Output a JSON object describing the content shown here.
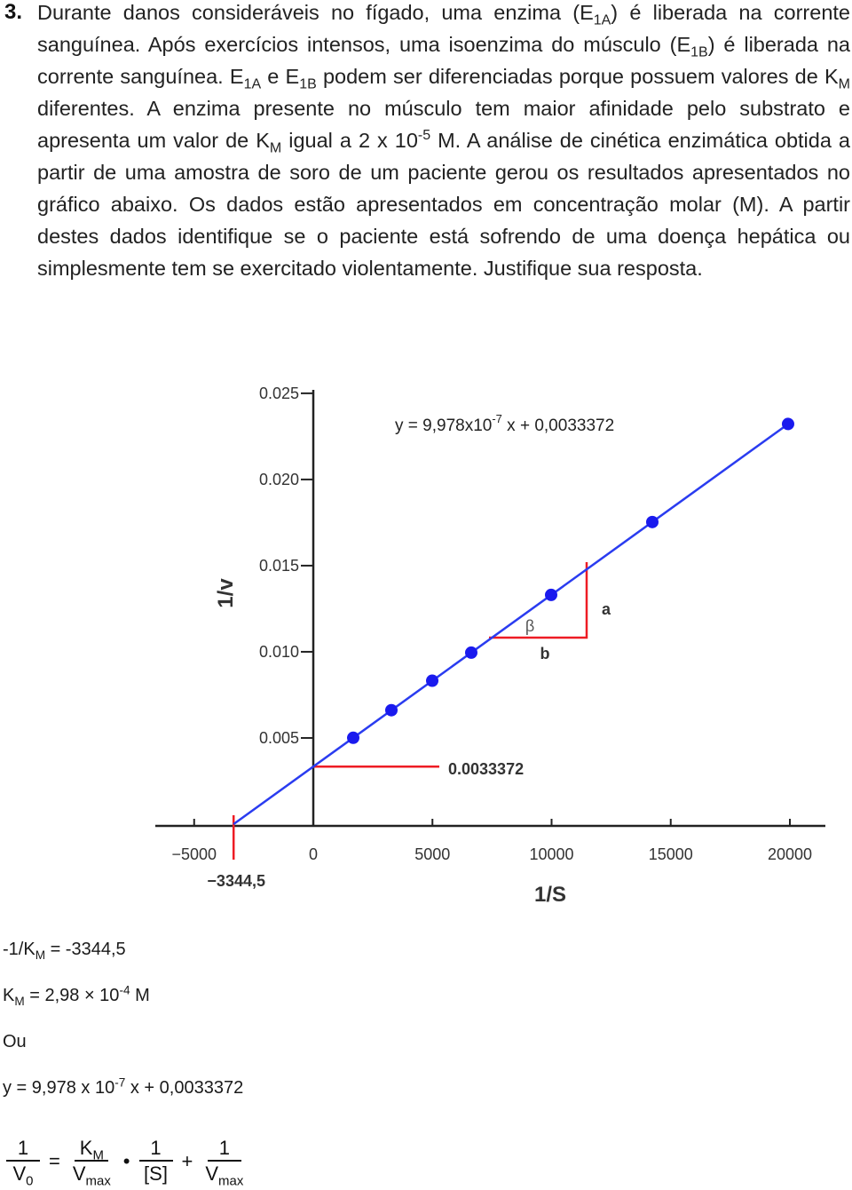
{
  "question": {
    "number": "3.",
    "runs": [
      {
        "text": "Durante danos consideráveis no fígado, uma enzima (E"
      },
      {
        "sub": "1A"
      },
      {
        "text": ") é liberada na corrente sanguínea. Após exercícios intensos, uma isoenzima do músculo (E"
      },
      {
        "sub": "1B"
      },
      {
        "text": ") é liberada na corrente sanguínea. E"
      },
      {
        "sub": "1A"
      },
      {
        "text": " e E"
      },
      {
        "sub": "1B"
      },
      {
        "text": " podem ser diferenciadas porque possuem valores de K"
      },
      {
        "sub": "M"
      },
      {
        "text": " diferentes. A enzima presente no músculo tem maior afinidade pelo substrato e apresenta um valor de K"
      },
      {
        "sub": "M"
      },
      {
        "text": " igual a 2 x 10"
      },
      {
        "sup": "-5"
      },
      {
        "text": " M. A análise de cinética enzimática obtida a partir de uma amostra de soro de um paciente gerou os resultados apresentados no gráfico abaixo. Os dados estão apresentados em concentração molar (M). A partir destes dados identifique se o paciente está sofrendo de uma doença hepática ou simplesmente tem se exercitado violentamente. Justifique sua resposta."
      }
    ]
  },
  "chart_data": {
    "type": "scatter",
    "x_label": "1/S",
    "y_label": "1/v",
    "x": [
      1676,
      3277,
      4991,
      6629,
      9981,
      14227,
      19925
    ],
    "series": [
      {
        "color": "#1a1aee",
        "values": [
          0.00501,
          0.00661,
          0.00832,
          0.00995,
          0.0133,
          0.01753,
          0.02322
        ]
      }
    ],
    "xlim": [
      -6630,
      21490
    ],
    "ylim": [
      0,
      0.0252
    ],
    "xticks": [
      {
        "value": -5000,
        "label": "−5000"
      },
      0,
      5000,
      10000,
      15000,
      20000
    ],
    "yticks": [
      0.005,
      {
        "value": 0.01,
        "label": "0.010"
      },
      0.015,
      {
        "value": 0.02,
        "label": "0.020"
      },
      0.025
    ],
    "fit": {
      "slope": 9.978e-07,
      "intercept": 0.0033372,
      "color": "#2a3cf0"
    },
    "equation": [
      {
        "text": "y = 9,978x10"
      },
      {
        "sup": "-7"
      },
      {
        "text": " x + 0,0033372"
      }
    ],
    "x_intercept": {
      "value": -3344.5,
      "label": "−3344,5"
    },
    "annotation_color": "#ee1c24",
    "triangle": {
      "angle": "β",
      "rise": "a",
      "run": "b"
    }
  },
  "solution": {
    "lines": [
      [
        {
          "text": "-1/K"
        },
        {
          "sub": "M"
        },
        {
          "text": " = -3344,5"
        }
      ],
      [
        {
          "text": "K"
        },
        {
          "sub": "M"
        },
        {
          "text": " = 2,98 × 10"
        },
        {
          "sup": "-4"
        },
        {
          "text": " M"
        }
      ],
      [
        {
          "text": "Ou"
        }
      ],
      [
        {
          "text": "y = 9,978 x 10"
        },
        {
          "sup": "-7"
        },
        {
          "text": " x + 0,0033372"
        }
      ]
    ],
    "formula": {
      "terms": [
        {
          "num": [
            {
              "text": "1"
            }
          ],
          "den": [
            {
              "text": "V"
            },
            {
              "sub": "0"
            }
          ]
        },
        {
          "num": [
            {
              "text": "K"
            },
            {
              "sub": "M"
            }
          ],
          "den": [
            {
              "text": "V"
            },
            {
              "sub": "max"
            }
          ]
        },
        {
          "num": [
            {
              "text": "1"
            }
          ],
          "den": [
            {
              "text": "[S]"
            }
          ]
        },
        {
          "num": [
            {
              "text": "1"
            }
          ],
          "den": [
            {
              "text": "V"
            },
            {
              "sub": "max"
            }
          ]
        }
      ],
      "operators": [
        "=",
        "•",
        "+"
      ]
    }
  }
}
